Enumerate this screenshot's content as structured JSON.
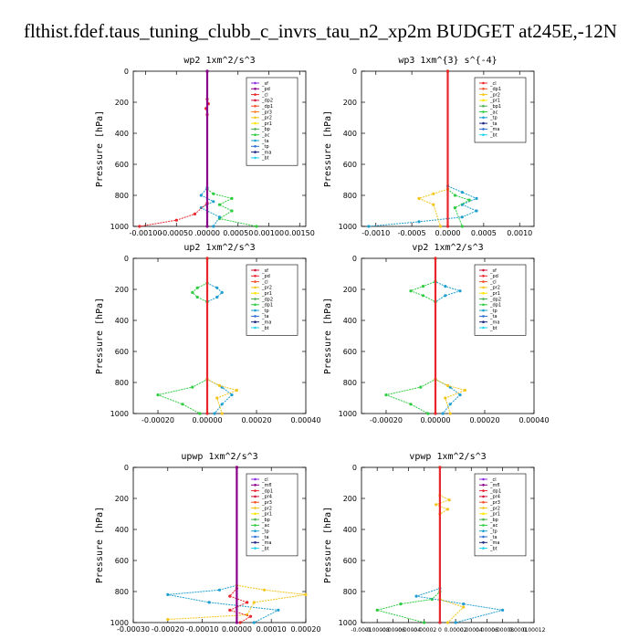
{
  "title": "flthist.fdef.taus_tuning_clubb_c_invrs_tau_n2_xp2m  BUDGET at245E,-12N",
  "chart_data": [
    {
      "type": "line",
      "title": "wp2   1xm^2/s^3",
      "ylabel": "Pressure [hPa]",
      "ylim": [
        1000,
        0
      ],
      "y_ticks": [
        0,
        200,
        400,
        600,
        800,
        1000
      ],
      "xlim": [
        -0.0012,
        0.0016
      ],
      "x_ticks": [
        -0.001,
        -0.0005,
        0.0,
        0.0005,
        0.001,
        0.0015
      ],
      "x_tick_labels": [
        "-0.00100",
        "-0.00050",
        ".00000",
        "0.00050",
        "0.00100",
        "0.00150"
      ],
      "legend": [
        "_sf",
        "_pd",
        "_cl",
        "_dp2",
        "_dp1",
        "_pr3",
        "_pr2",
        "_pr1",
        "_bp",
        "_ac",
        "_ta",
        "_tp",
        "_ma",
        "_bt"
      ],
      "legend_colors": [
        "#8a2be2",
        "#8b008b",
        "#e8262b",
        "#d2143c",
        "#f4502a",
        "#ff7f27",
        "#f2c61c",
        "#ffe600",
        "#4caf50",
        "#2ecc40",
        "#1f9fd0",
        "#2d6fd1",
        "#1a237e",
        "#22d3ee"
      ],
      "series": [
        {
          "name": "_pr1",
          "color": "#2ecc40",
          "x": [
            0,
            0,
            0.0001,
            0.0004,
            0.0002,
            0.0004,
            0.0002,
            0.0008
          ],
          "y": [
            0,
            760,
            790,
            820,
            860,
            900,
            950,
            1000
          ]
        },
        {
          "name": "_ta",
          "color": "#1f9fd0",
          "x": [
            0,
            0,
            -0.0001,
            0.0001,
            -0.0001,
            0.0002,
            0.0001
          ],
          "y": [
            0,
            750,
            800,
            840,
            880,
            940,
            1000
          ]
        },
        {
          "name": "_cl",
          "color": "#e8262b",
          "x": [
            0,
            0,
            2e-05,
            -2e-05,
            0,
            0,
            -0.0002,
            -0.0005,
            -0.0011
          ],
          "y": [
            0,
            180,
            210,
            240,
            280,
            850,
            920,
            960,
            1000
          ]
        },
        {
          "name": "_bt",
          "color": "#8b008b",
          "x": [
            0,
            0
          ],
          "y": [
            0,
            1000
          ]
        }
      ]
    },
    {
      "type": "line",
      "title": "wp3   1xm^{3} s^{-4}",
      "ylabel": "Pressure [hPa]",
      "ylim": [
        1000,
        0
      ],
      "y_ticks": [
        0,
        200,
        400,
        600,
        800,
        1000
      ],
      "xlim": [
        -0.0012,
        0.0012
      ],
      "x_ticks": [
        -0.001,
        -0.0005,
        0.0,
        0.0005,
        0.001
      ],
      "x_tick_labels": [
        "-0.0010",
        "-0.0005",
        "0.0000",
        "0.0005",
        "0.0010"
      ],
      "legend": [
        "_cl",
        "_dp1",
        "_pr2",
        "_pr1",
        "_bp1",
        "_ac",
        "_tp",
        "_ta",
        "_ma",
        "_bt"
      ],
      "legend_colors": [
        "#e8262b",
        "#f4502a",
        "#f2c61c",
        "#ffe600",
        "#4caf50",
        "#2ecc40",
        "#1f9fd0",
        "#1a237e",
        "#2d6fd1",
        "#22d3ee"
      ],
      "series": [
        {
          "name": "_ta",
          "color": "#1f9fd0",
          "x": [
            0,
            0,
            0.0002,
            0.0004,
            0.0002,
            0.0004,
            0.0002,
            -0.0004,
            -0.0011
          ],
          "y": [
            0,
            740,
            780,
            820,
            860,
            900,
            940,
            970,
            1000
          ]
        },
        {
          "name": "_pr1",
          "color": "#2ecc40",
          "x": [
            0,
            0,
            0.0001,
            0.0003,
            0.0001,
            0.0002
          ],
          "y": [
            0,
            760,
            800,
            830,
            880,
            1000
          ]
        },
        {
          "name": "_pr2",
          "color": "#f2c61c",
          "x": [
            0,
            0,
            -0.0002,
            -0.0004,
            -0.0002,
            -0.0001
          ],
          "y": [
            0,
            760,
            790,
            820,
            860,
            1000
          ]
        },
        {
          "name": "_cl",
          "color": "#e8262b",
          "x": [
            0,
            0
          ],
          "y": [
            0,
            1000
          ]
        }
      ]
    },
    {
      "type": "line",
      "title": "up2   1xm^2/s^3",
      "ylabel": "Pressure [hPa]",
      "ylim": [
        1000,
        0
      ],
      "y_ticks": [
        0,
        200,
        400,
        600,
        800,
        1000
      ],
      "xlim": [
        -0.0003,
        0.0004
      ],
      "x_ticks": [
        -0.0002,
        0.0,
        0.0002,
        0.0004
      ],
      "x_tick_labels": [
        "-0.00020",
        "0.00000",
        "0.00020",
        "0.00040"
      ],
      "legend": [
        "_sf",
        "_pd",
        "_cl",
        "_pr2",
        "_pr1",
        "_dp2",
        "_dp1",
        "_tp",
        "_ta",
        "_ma",
        "_bt"
      ],
      "legend_colors": [
        "#d2143c",
        "#e8262b",
        "#f4502a",
        "#f2c61c",
        "#ffe600",
        "#4caf50",
        "#2ecc40",
        "#1f9fd0",
        "#2d6fd1",
        "#1a237e",
        "#22d3ee"
      ],
      "series": [
        {
          "name": "_tp",
          "color": "#1f9fd0",
          "x": [
            0,
            0,
            4e-05,
            6e-05,
            4e-05,
            0,
            0,
            6e-05,
            0.0001,
            6e-05,
            3e-05
          ],
          "y": [
            0,
            160,
            190,
            220,
            250,
            280,
            780,
            830,
            880,
            940,
            1000
          ]
        },
        {
          "name": "_dp1",
          "color": "#2ecc40",
          "x": [
            0,
            0,
            -4e-05,
            -6e-05,
            -4e-05,
            0,
            0,
            -6e-05,
            -0.0002,
            -0.0001,
            -3e-05
          ],
          "y": [
            0,
            160,
            190,
            220,
            250,
            280,
            780,
            830,
            880,
            940,
            1000
          ]
        },
        {
          "name": "_pr2",
          "color": "#f2c61c",
          "x": [
            0,
            0,
            5e-05,
            0.00012,
            4e-05,
            6e-05
          ],
          "y": [
            0,
            780,
            820,
            850,
            900,
            1000
          ]
        },
        {
          "name": "_cl",
          "color": "#e8262b",
          "x": [
            0,
            0
          ],
          "y": [
            0,
            1000
          ]
        }
      ]
    },
    {
      "type": "line",
      "title": "vp2   1xm^2/s^3",
      "ylabel": "Pressure [hPa]",
      "ylim": [
        1000,
        0
      ],
      "y_ticks": [
        0,
        200,
        400,
        600,
        800,
        1000
      ],
      "xlim": [
        -0.0003,
        0.0004
      ],
      "x_ticks": [
        -0.0002,
        0.0,
        0.0002,
        0.0004
      ],
      "x_tick_labels": [
        "-0.00020",
        "0.00000",
        "0.00020",
        "0.00040"
      ],
      "legend": [
        "_sf",
        "_pd",
        "_cl",
        "_pr2",
        "_pr1",
        "_dp2",
        "_dp1",
        "_tp",
        "_ta",
        "_ma",
        "_bt"
      ],
      "legend_colors": [
        "#d2143c",
        "#e8262b",
        "#f4502a",
        "#f2c61c",
        "#ffe600",
        "#4caf50",
        "#2ecc40",
        "#1f9fd0",
        "#2d6fd1",
        "#1a237e",
        "#22d3ee"
      ],
      "series": [
        {
          "name": "_tp",
          "color": "#1f9fd0",
          "x": [
            0,
            0,
            4e-05,
            0.0001,
            4e-05,
            0,
            0,
            6e-05,
            0.0001,
            6e-05,
            3e-05
          ],
          "y": [
            0,
            150,
            180,
            210,
            240,
            280,
            780,
            830,
            880,
            940,
            1000
          ]
        },
        {
          "name": "_dp1",
          "color": "#2ecc40",
          "x": [
            0,
            0,
            -5e-05,
            -0.0001,
            -5e-05,
            0,
            0,
            -6e-05,
            -0.0002,
            -0.0001,
            -3e-05
          ],
          "y": [
            0,
            150,
            180,
            210,
            240,
            280,
            780,
            830,
            880,
            940,
            1000
          ]
        },
        {
          "name": "_pr2",
          "color": "#f2c61c",
          "x": [
            0,
            0,
            5e-05,
            0.00012,
            4e-05,
            6e-05
          ],
          "y": [
            0,
            780,
            820,
            850,
            900,
            1000
          ]
        },
        {
          "name": "_cl",
          "color": "#e8262b",
          "x": [
            0,
            0
          ],
          "y": [
            0,
            1000
          ]
        }
      ]
    },
    {
      "type": "line",
      "title": "upwp   1xm^2/s^3",
      "ylabel": "Pressure [hPa]",
      "ylim": [
        1000,
        0
      ],
      "y_ticks": [
        0,
        200,
        400,
        600,
        800,
        1000
      ],
      "xlim": [
        -0.0003,
        0.0002
      ],
      "x_ticks": [
        -0.0003,
        -0.0002,
        -0.0001,
        0.0,
        0.0001,
        0.0002
      ],
      "x_tick_labels": [
        "-0.00030",
        "-0.00020",
        "-0.00010",
        "0.00000",
        "0.00010",
        "0.00020"
      ],
      "legend": [
        "_cl",
        "_mfl",
        "_dp1",
        "_pr4",
        "_pr3",
        "_pr2",
        "_pr1",
        "_bp",
        "_ac",
        "_tp",
        "_ta",
        "_ma",
        "_bt"
      ],
      "legend_colors": [
        "#8a2be2",
        "#8b008b",
        "#e8262b",
        "#d2143c",
        "#f4502a",
        "#f2c61c",
        "#ffe600",
        "#4caf50",
        "#2ecc40",
        "#1f9fd0",
        "#2d6fd1",
        "#1a237e",
        "#22d3ee"
      ],
      "series": [
        {
          "name": "_ta",
          "color": "#1f9fd0",
          "x": [
            0,
            0,
            -5e-05,
            -0.0002,
            -8e-05,
            0.00012,
            5e-05
          ],
          "y": [
            0,
            760,
            790,
            820,
            870,
            920,
            1000
          ]
        },
        {
          "name": "_pr2",
          "color": "#f2c61c",
          "x": [
            0,
            0,
            8e-05,
            0.0002,
            5e-05,
            3e-05,
            -0.0002
          ],
          "y": [
            0,
            760,
            790,
            820,
            870,
            950,
            980
          ]
        },
        {
          "name": "_cl",
          "color": "#e8262b",
          "x": [
            0,
            0,
            -2e-05,
            3e-05,
            -2e-05,
            4e-05,
            1e-05
          ],
          "y": [
            0,
            780,
            830,
            870,
            920,
            960,
            1000
          ]
        },
        {
          "name": "_bt",
          "color": "#8b008b",
          "x": [
            0,
            0
          ],
          "y": [
            0,
            1000
          ]
        }
      ]
    },
    {
      "type": "line",
      "title": "vpwp   1xm^2/s^3",
      "ylabel": "Pressure [hPa]",
      "ylim": [
        1000,
        0
      ],
      "y_ticks": [
        0,
        200,
        400,
        600,
        800,
        1000
      ],
      "xlim": [
        -0.0001,
        0.00012
      ],
      "x_ticks": [
        -0.0001,
        -8e-05,
        -6e-05,
        -4e-05,
        -2e-05,
        0.0,
        2e-05,
        4e-05,
        6e-05,
        8e-05,
        0.0001,
        0.00012
      ],
      "x_tick_labels": [
        "-0.0001",
        "-0.00008",
        "-0.00006",
        "-0.00004",
        "-0.00002",
        "0",
        "0.00002",
        "0.00004",
        "0.00006",
        "0.00008",
        "0.0001",
        "0.00012"
      ],
      "legend": [
        "_cl",
        "_mfl",
        "_dp1",
        "_pr4",
        "_pr3",
        "_pr2",
        "_pr1",
        "_bp",
        "_ac",
        "_tp",
        "_ta",
        "_ma",
        "_bt"
      ],
      "legend_colors": [
        "#8a2be2",
        "#8b008b",
        "#e8262b",
        "#d2143c",
        "#f4502a",
        "#f2c61c",
        "#ffe600",
        "#4caf50",
        "#2ecc40",
        "#1f9fd0",
        "#2d6fd1",
        "#1a237e",
        "#22d3ee"
      ],
      "series": [
        {
          "name": "_ac",
          "color": "#2ecc40",
          "x": [
            0,
            0,
            -1e-05,
            -5e-05,
            -8e-05,
            -2e-05
          ],
          "y": [
            0,
            800,
            850,
            880,
            920,
            1000
          ]
        },
        {
          "name": "_ta",
          "color": "#1f9fd0",
          "x": [
            0,
            0,
            -3e-05,
            3e-05,
            8e-05,
            2e-05
          ],
          "y": [
            0,
            780,
            830,
            880,
            920,
            1000
          ]
        },
        {
          "name": "_pr2",
          "color": "#f2c61c",
          "x": [
            0,
            0,
            1.2e-05,
            -5e-06,
            1e-05,
            0,
            0,
            3e-05,
            1e-05
          ],
          "y": [
            0,
            180,
            210,
            240,
            270,
            300,
            850,
            900,
            1000
          ]
        },
        {
          "name": "_cl",
          "color": "#e8262b",
          "x": [
            0,
            0
          ],
          "y": [
            0,
            1000
          ]
        }
      ]
    }
  ]
}
